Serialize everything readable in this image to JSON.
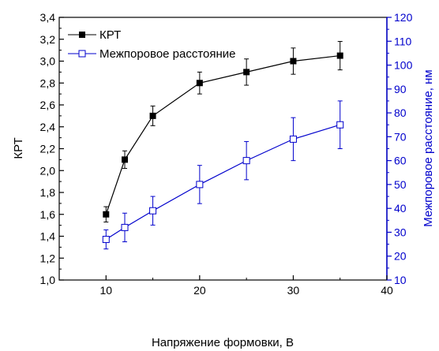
{
  "chart_data": {
    "type": "line",
    "xlabel": "Напряжение формовки, В",
    "ylabel_left": "КРТ",
    "ylabel_right": "Межпоровое расстояние, нм",
    "xlim": [
      5,
      40
    ],
    "ylim_left": [
      1.0,
      3.4
    ],
    "ylim_right": [
      10,
      120
    ],
    "x_ticks": [
      "10",
      "20",
      "30",
      "40"
    ],
    "y_left_ticks": [
      "1,0",
      "1,2",
      "1,4",
      "1,6",
      "1,8",
      "2,0",
      "2,2",
      "2,4",
      "2,6",
      "2,8",
      "3,0",
      "3,2",
      "3,4"
    ],
    "y_right_ticks": [
      "10",
      "20",
      "30",
      "40",
      "50",
      "60",
      "70",
      "80",
      "90",
      "100",
      "110",
      "120"
    ],
    "legend_position": "top-left",
    "colors": {
      "series1": "#000000",
      "series2": "#0000cc"
    },
    "series": [
      {
        "name": "КРТ",
        "axis": "left",
        "marker": "filled-square",
        "x": [
          10,
          12,
          15,
          20,
          25,
          30,
          35
        ],
        "y": [
          1.6,
          2.1,
          2.5,
          2.8,
          2.9,
          3.0,
          3.05
        ],
        "err": [
          0.07,
          0.08,
          0.09,
          0.1,
          0.12,
          0.12,
          0.13
        ]
      },
      {
        "name": "Межпоровое расстояние",
        "axis": "right",
        "marker": "open-square",
        "x": [
          10,
          12,
          15,
          20,
          25,
          30,
          35
        ],
        "y": [
          27,
          32,
          39,
          50,
          60,
          69,
          75
        ],
        "err": [
          4,
          6,
          6,
          8,
          8,
          9,
          10
        ]
      }
    ]
  }
}
